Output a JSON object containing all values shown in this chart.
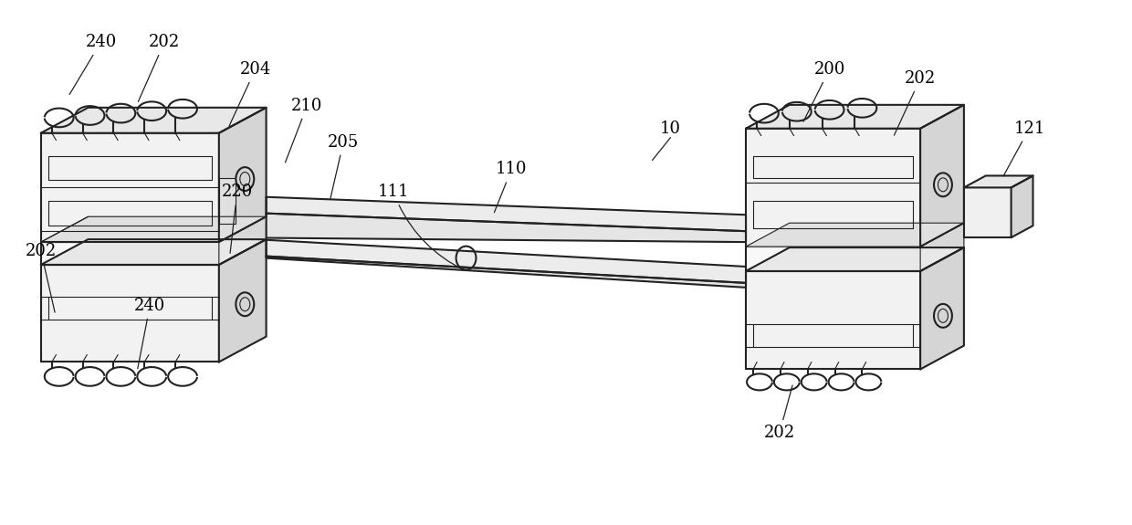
{
  "bg_color": "#ffffff",
  "line_color": "#222222",
  "lw_main": 1.5,
  "lw_thin": 0.8,
  "lw_label": 0.9,
  "figsize": [
    12.4,
    5.75
  ],
  "dpi": 100,
  "label_fontsize": 13,
  "label_font": "serif",
  "gray_light": "#f2f2f2",
  "gray_mid": "#e0e0e0",
  "gray_dark": "#c8c8c8",
  "gray_side": "#d5d5d5",
  "gray_top": "#e8e8e8"
}
